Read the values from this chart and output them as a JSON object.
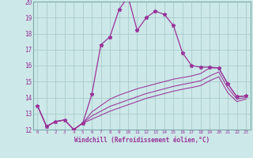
{
  "xlabel": "Windchill (Refroidissement éolien,°C)",
  "xlim": [
    -0.5,
    23.5
  ],
  "ylim": [
    12,
    20
  ],
  "xticks": [
    0,
    1,
    2,
    3,
    4,
    5,
    6,
    7,
    8,
    9,
    10,
    11,
    12,
    13,
    14,
    15,
    16,
    17,
    18,
    19,
    20,
    21,
    22,
    23
  ],
  "yticks": [
    12,
    13,
    14,
    15,
    16,
    17,
    18,
    19,
    20
  ],
  "bg_color": "#cce8e8",
  "grid_color": "#aacccc",
  "line_color": "#993399",
  "lines": [
    {
      "x": [
        0,
        1,
        2,
        3,
        4,
        5,
        6,
        7,
        8,
        9,
        10,
        11,
        12,
        13,
        14,
        15,
        16,
        17,
        18,
        19,
        20,
        21,
        22,
        23
      ],
      "y": [
        13.5,
        12.2,
        12.5,
        12.6,
        12.0,
        12.4,
        14.2,
        17.3,
        17.8,
        19.5,
        20.3,
        18.2,
        19.0,
        19.4,
        19.2,
        18.5,
        16.8,
        16.0,
        15.9,
        15.9,
        15.85,
        14.85,
        14.05,
        14.1
      ],
      "markers": true
    },
    {
      "x": [
        0,
        1,
        2,
        3,
        4,
        5,
        6,
        7,
        8,
        9,
        10,
        11,
        12,
        13,
        14,
        15,
        16,
        17,
        18,
        19,
        20,
        21,
        22,
        23
      ],
      "y": [
        13.5,
        12.2,
        12.5,
        12.6,
        12.0,
        12.4,
        13.1,
        13.5,
        13.9,
        14.15,
        14.35,
        14.55,
        14.7,
        14.85,
        15.0,
        15.15,
        15.25,
        15.35,
        15.5,
        15.85,
        15.85,
        14.85,
        14.05,
        14.1
      ],
      "markers": false
    },
    {
      "x": [
        0,
        1,
        2,
        3,
        4,
        5,
        6,
        7,
        8,
        9,
        10,
        11,
        12,
        13,
        14,
        15,
        16,
        17,
        18,
        19,
        20,
        21,
        22,
        23
      ],
      "y": [
        13.5,
        12.2,
        12.5,
        12.6,
        12.0,
        12.4,
        12.85,
        13.15,
        13.45,
        13.65,
        13.85,
        14.05,
        14.25,
        14.4,
        14.55,
        14.7,
        14.82,
        14.93,
        15.05,
        15.35,
        15.6,
        14.6,
        13.9,
        14.0
      ],
      "markers": false
    },
    {
      "x": [
        0,
        1,
        2,
        3,
        4,
        5,
        6,
        7,
        8,
        9,
        10,
        11,
        12,
        13,
        14,
        15,
        16,
        17,
        18,
        19,
        20,
        21,
        22,
        23
      ],
      "y": [
        13.5,
        12.2,
        12.5,
        12.6,
        12.0,
        12.4,
        12.65,
        12.9,
        13.15,
        13.35,
        13.55,
        13.75,
        13.95,
        14.1,
        14.25,
        14.4,
        14.52,
        14.63,
        14.75,
        15.05,
        15.3,
        14.3,
        13.75,
        13.9
      ],
      "markers": false
    }
  ]
}
